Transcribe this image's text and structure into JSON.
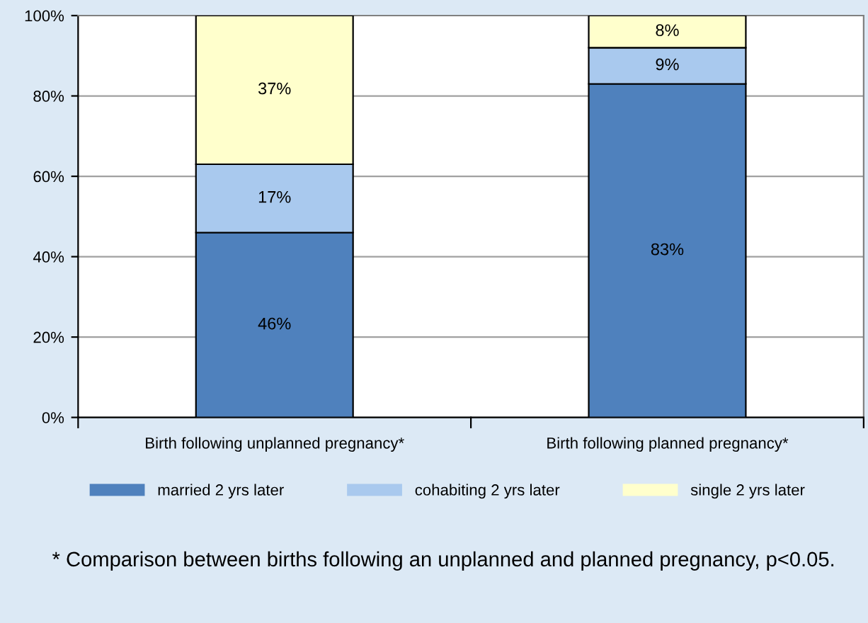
{
  "chart_data": {
    "type": "bar",
    "stacked": true,
    "categories": [
      "Birth following unplanned pregnancy*",
      "Birth following planned pregnancy*"
    ],
    "series": [
      {
        "name": "married 2 yrs later",
        "color": "#4f81bd",
        "values": [
          46,
          83
        ],
        "value_labels": [
          "46%",
          "83%"
        ]
      },
      {
        "name": "cohabiting 2 yrs later",
        "color": "#a9c9ee",
        "values": [
          17,
          9
        ],
        "value_labels": [
          "17%",
          "9%"
        ]
      },
      {
        "name": "single 2 yrs later",
        "color": "#ffffcc",
        "values": [
          37,
          8
        ],
        "value_labels": [
          "37%",
          "8%"
        ]
      }
    ],
    "ylim": [
      0,
      100
    ],
    "yticks": [
      {
        "value": 0,
        "label": "0%"
      },
      {
        "value": 20,
        "label": "20%"
      },
      {
        "value": 40,
        "label": "40%"
      },
      {
        "value": 60,
        "label": "60%"
      },
      {
        "value": 80,
        "label": "80%"
      },
      {
        "value": 100,
        "label": "100%"
      }
    ],
    "grid": "y",
    "legend": "bottom",
    "annotations": [
      "* Comparison between births following an unplanned and planned pregnancy, p<0.05."
    ]
  }
}
